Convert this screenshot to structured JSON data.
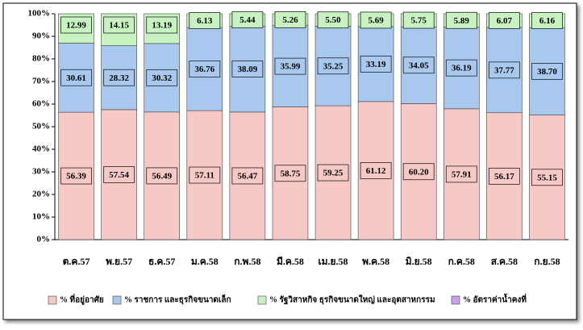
{
  "chart_data": {
    "type": "stacked_bar",
    "categories": [
      "ต.ค.57",
      "พ.ย.57",
      "ธ.ค.57",
      "ม.ค.58",
      "ก.พ.58",
      "มี.ค.58",
      "เม.ย.58",
      "พ.ค.58",
      "มิ.ย.58",
      "ก.ค.58",
      "ส.ค.58",
      "ก.ย.58"
    ],
    "series": [
      {
        "name": "% ที่อยู่อาศัย",
        "color": "#f6c9c6",
        "values": [
          56.39,
          57.54,
          56.49,
          57.11,
          56.47,
          58.75,
          59.25,
          61.12,
          60.2,
          57.91,
          56.17,
          55.15
        ],
        "value_labels": [
          "56.39",
          "57.54",
          "56.49",
          "57.11",
          "56.47",
          "58.75",
          "59.25",
          "61.12",
          "60.20",
          "57.91",
          "56.17",
          "55.15"
        ]
      },
      {
        "name": "% ราชการ และธุรกิจขนาดเล็ก",
        "color": "#a9c8ee",
        "values": [
          30.61,
          28.32,
          30.32,
          36.76,
          38.09,
          35.99,
          35.25,
          33.19,
          34.05,
          36.19,
          37.77,
          38.7
        ],
        "value_labels": [
          "30.61",
          "28.32",
          "30.32",
          "36.76",
          "38.09",
          "35.99",
          "35.25",
          "33.19",
          "34.05",
          "36.19",
          "37.77",
          "38.70"
        ]
      },
      {
        "name": "% รัฐวิสาหกิจ ธุรกิจขนาดใหญ่ และอุตสาหกรรม",
        "color": "#c9f2c2",
        "values": [
          12.99,
          14.15,
          13.19,
          6.13,
          5.44,
          5.26,
          5.5,
          5.69,
          5.75,
          5.89,
          6.07,
          6.16
        ],
        "value_labels": [
          "12.99",
          "14.15",
          "13.19",
          "6.13",
          "5.44",
          "5.26",
          "5.50",
          "5.69",
          "5.75",
          "5.89",
          "6.07",
          "6.16"
        ]
      },
      {
        "name": "% อัตราค่าน้ำคงที่",
        "color": "#c9a3ea",
        "values": [
          0,
          0,
          0,
          0,
          0,
          0,
          0,
          0,
          0,
          0,
          0,
          0
        ]
      }
    ],
    "ylim": [
      0,
      100
    ],
    "yticks": [
      {
        "value": 0,
        "label": "0%"
      },
      {
        "value": 10,
        "label": "10%"
      },
      {
        "value": 20,
        "label": "20%"
      },
      {
        "value": 30,
        "label": "30%"
      },
      {
        "value": 40,
        "label": "40%"
      },
      {
        "value": 50,
        "label": "50%"
      },
      {
        "value": 60,
        "label": "60%"
      },
      {
        "value": 70,
        "label": "70%"
      },
      {
        "value": 80,
        "label": "80%"
      },
      {
        "value": 90,
        "label": "90%"
      },
      {
        "value": 100,
        "label": "100%"
      }
    ],
    "legend": "bottom"
  }
}
